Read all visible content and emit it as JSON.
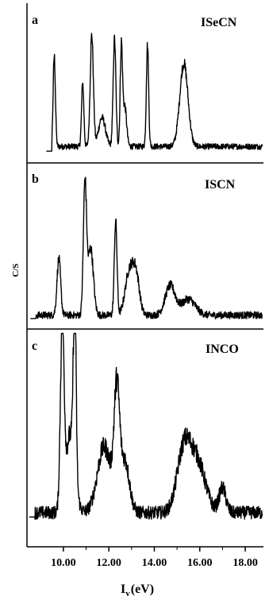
{
  "chart_data": {
    "type": "line",
    "y_label": "C/S",
    "x_label_main": "I",
    "x_label_sub": "v",
    "x_label_unit": "(eV)",
    "xlim": [
      8.4,
      18.8
    ],
    "xticks": [
      10.0,
      12.0,
      14.0,
      16.0,
      18.0
    ],
    "xtick_labels": [
      "10.00",
      "12.00",
      "14.00",
      "16.00",
      "18.00"
    ],
    "panels": [
      {
        "letter": "a",
        "title": "ISeCN",
        "baseline": 0.08,
        "ylim": [
          0,
          1
        ],
        "peaks": [
          {
            "x": 9.6,
            "height": 0.78,
            "width": 0.05
          },
          {
            "x": 10.85,
            "height": 0.55,
            "width": 0.05
          },
          {
            "x": 11.25,
            "height": 0.96,
            "width": 0.07
          },
          {
            "x": 12.25,
            "height": 0.93,
            "width": 0.06
          },
          {
            "x": 12.55,
            "height": 0.85,
            "width": 0.05
          },
          {
            "x": 12.7,
            "height": 0.35,
            "width": 0.08
          },
          {
            "x": 13.7,
            "height": 0.88,
            "width": 0.05
          },
          {
            "x": 15.3,
            "height": 0.72,
            "width": 0.18
          },
          {
            "x": 11.7,
            "height": 0.25,
            "width": 0.15
          }
        ]
      },
      {
        "letter": "b",
        "title": "ISCN",
        "baseline": 0.05,
        "ylim": [
          0,
          1
        ],
        "peaks": [
          {
            "x": 9.8,
            "height": 0.42,
            "width": 0.08
          },
          {
            "x": 10.95,
            "height": 0.97,
            "width": 0.07
          },
          {
            "x": 11.2,
            "height": 0.5,
            "width": 0.12
          },
          {
            "x": 12.3,
            "height": 0.7,
            "width": 0.06
          },
          {
            "x": 12.9,
            "height": 0.32,
            "width": 0.18
          },
          {
            "x": 13.2,
            "height": 0.28,
            "width": 0.15
          },
          {
            "x": 14.7,
            "height": 0.22,
            "width": 0.22
          },
          {
            "x": 15.5,
            "height": 0.12,
            "width": 0.3
          }
        ]
      },
      {
        "letter": "c",
        "title": "INCO",
        "baseline": 0.05,
        "ylim": [
          0,
          1
        ],
        "peaks": [
          {
            "x": 9.95,
            "height": 1.05,
            "width": 0.08
          },
          {
            "x": 10.5,
            "height": 1.0,
            "width": 0.06
          },
          {
            "x": 10.3,
            "height": 0.45,
            "width": 0.2
          },
          {
            "x": 11.8,
            "height": 0.38,
            "width": 0.3
          },
          {
            "x": 12.35,
            "height": 0.64,
            "width": 0.12
          },
          {
            "x": 12.7,
            "height": 0.3,
            "width": 0.2
          },
          {
            "x": 15.3,
            "height": 0.35,
            "width": 0.3
          },
          {
            "x": 15.9,
            "height": 0.28,
            "width": 0.35
          },
          {
            "x": 17.0,
            "height": 0.14,
            "width": 0.15
          }
        ]
      }
    ]
  }
}
